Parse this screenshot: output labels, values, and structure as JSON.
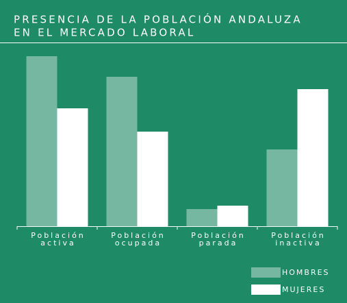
{
  "chart_data": {
    "type": "bar",
    "title": [
      "PRESENCIA DE LA POBLACIÓN ANDALUZA",
      "EN EL MERCADO LABORAL"
    ],
    "categories": [
      [
        "Población",
        "activa"
      ],
      [
        "Población",
        "ocupada"
      ],
      [
        "Población",
        "parada"
      ],
      [
        "Población",
        "inactiva"
      ]
    ],
    "series": [
      {
        "name": "HOMBRES",
        "color": "#76b7a2",
        "values": [
          248,
          218,
          25,
          112
        ]
      },
      {
        "name": "MUJERES",
        "color": "#ffffff",
        "values": [
          172,
          138,
          30,
          200
        ]
      }
    ],
    "ylim": [
      0,
      250
    ]
  }
}
